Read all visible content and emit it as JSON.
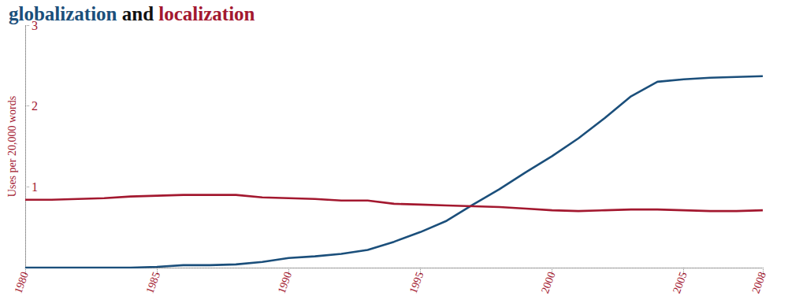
{
  "chart_data": {
    "type": "line",
    "title": "globalization and localization",
    "y_label": "Uses per 20,000 words",
    "x": [
      1980,
      1981,
      1982,
      1983,
      1984,
      1985,
      1986,
      1987,
      1988,
      1989,
      1990,
      1991,
      1992,
      1993,
      1994,
      1995,
      1996,
      1997,
      1998,
      1999,
      2000,
      2001,
      2002,
      2003,
      2004,
      2005,
      2006,
      2007,
      2008
    ],
    "series": [
      {
        "name": "globalization",
        "color": "#1b4f7b",
        "values": [
          0,
          0,
          0,
          0,
          0,
          0.01,
          0.03,
          0.03,
          0.04,
          0.07,
          0.12,
          0.14,
          0.17,
          0.22,
          0.32,
          0.44,
          0.58,
          0.78,
          0.97,
          1.18,
          1.38,
          1.6,
          1.85,
          2.12,
          2.3,
          2.33,
          2.35,
          2.36,
          2.37
        ]
      },
      {
        "name": "localization",
        "color": "#a3182f",
        "values": [
          0.84,
          0.84,
          0.85,
          0.86,
          0.88,
          0.89,
          0.9,
          0.9,
          0.9,
          0.87,
          0.86,
          0.85,
          0.83,
          0.83,
          0.79,
          0.78,
          0.77,
          0.76,
          0.75,
          0.73,
          0.71,
          0.7,
          0.71,
          0.72,
          0.72,
          0.71,
          0.7,
          0.7,
          0.71
        ]
      }
    ],
    "xlim": [
      1980,
      2008
    ],
    "xticks": [
      1980,
      1985,
      1990,
      1995,
      2000,
      2005,
      2008
    ],
    "ylim": [
      0,
      3
    ],
    "yticks": [
      1,
      2,
      3
    ],
    "grid": false
  }
}
